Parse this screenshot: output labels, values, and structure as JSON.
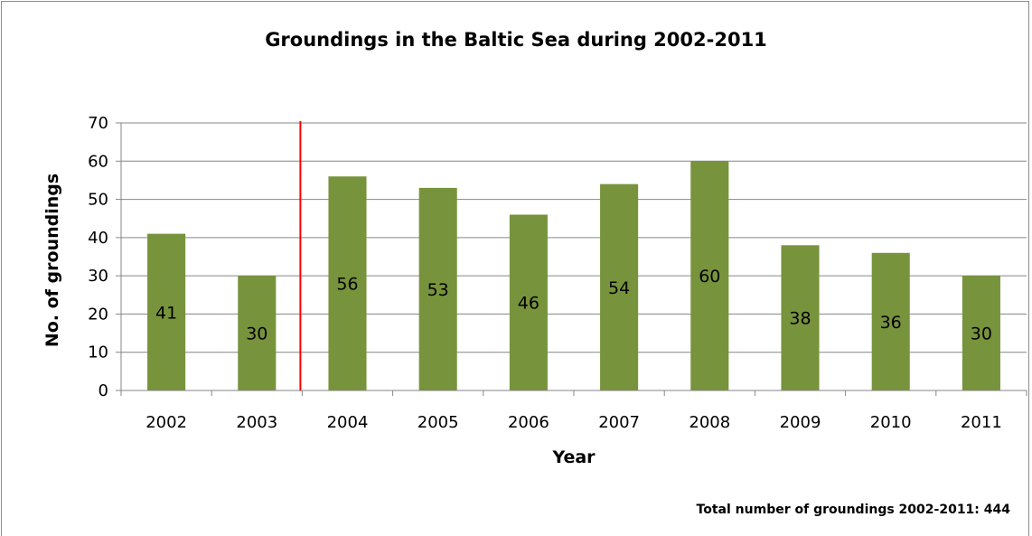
{
  "chart_data": {
    "type": "bar",
    "title": "Groundings in the Baltic Sea during 2002-2011",
    "xlabel": "Year",
    "ylabel": "No. of groundings",
    "categories": [
      "2002",
      "2003",
      "2004",
      "2005",
      "2006",
      "2007",
      "2008",
      "2009",
      "2010",
      "2011"
    ],
    "values": [
      41,
      30,
      56,
      53,
      46,
      54,
      60,
      38,
      36,
      30
    ],
    "ylim": [
      0,
      70
    ],
    "yticks": [
      0,
      10,
      20,
      30,
      40,
      50,
      60,
      70
    ],
    "grid": true,
    "legend": "none",
    "bar_color": "#77933c",
    "marker_line": {
      "between": [
        "2003",
        "2004"
      ],
      "color": "#ff0000"
    },
    "footnote": "Total number of groundings 2002-2011:  444"
  }
}
